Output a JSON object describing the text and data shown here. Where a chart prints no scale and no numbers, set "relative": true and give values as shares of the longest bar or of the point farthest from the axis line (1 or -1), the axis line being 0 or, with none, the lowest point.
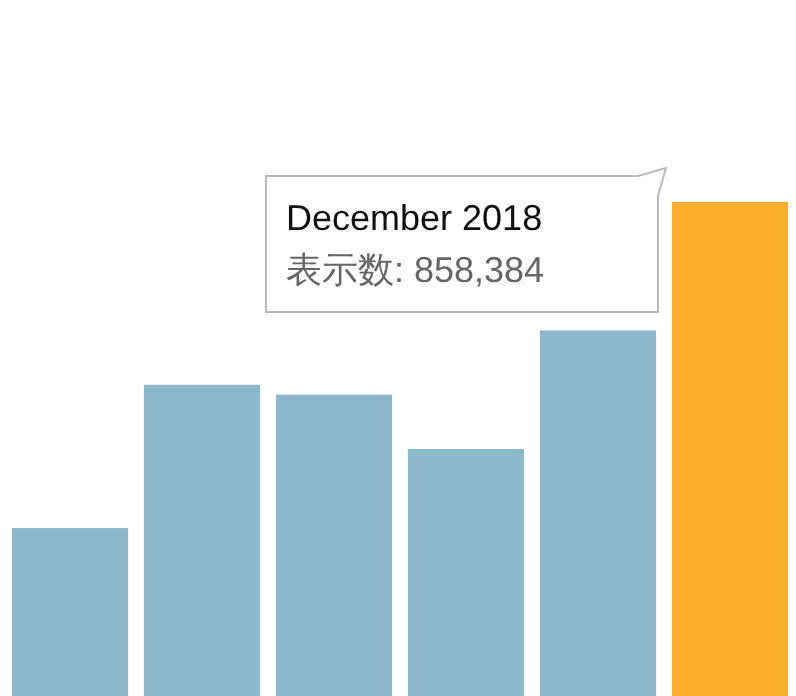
{
  "chart_data": {
    "type": "bar",
    "relative": true,
    "categories": [
      null,
      null,
      null,
      null,
      null,
      null
    ],
    "values": [
      0.34,
      0.63,
      0.61,
      0.5,
      0.74,
      1.0
    ],
    "colors": [
      "#8db8cb",
      "#8db8cb",
      "#8db8cb",
      "#8db8cb",
      "#8db8cb",
      "#fbae2e"
    ],
    "annotations": [
      "December 2018",
      "表示数: 858,384"
    ]
  }
}
